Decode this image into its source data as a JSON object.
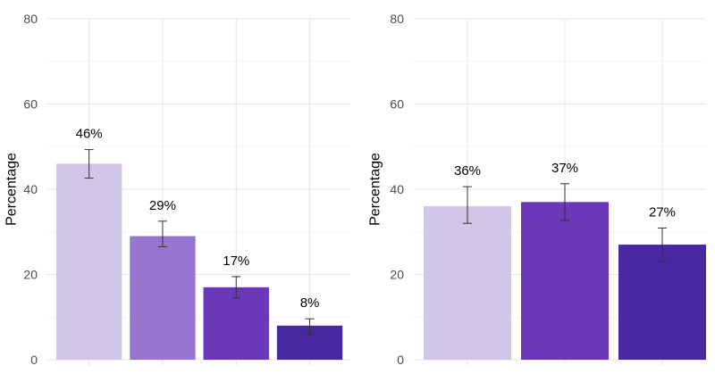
{
  "chart_data": [
    {
      "type": "bar",
      "categories": [
        "",
        "",
        "",
        ""
      ],
      "values": [
        46,
        29,
        17,
        8
      ],
      "error_low": [
        42.6,
        26.5,
        14.5,
        5.9
      ],
      "error_high": [
        49.3,
        32.5,
        19.5,
        9.6
      ],
      "data_labels": [
        "46%",
        "29%",
        "17%",
        "8%"
      ],
      "colors": [
        "#d0c6e8",
        "#9676d0",
        "#6a38b8",
        "#4728a0"
      ],
      "title": "",
      "xlabel": "",
      "ylabel": "Percentage",
      "ylim": [
        0,
        80
      ],
      "yticks": [
        0,
        20,
        40,
        60,
        80
      ],
      "ytick_labels": [
        "0",
        "20",
        "40",
        "60",
        "80"
      ],
      "grid": true
    },
    {
      "type": "bar",
      "categories": [
        "",
        "",
        ""
      ],
      "values": [
        36,
        37,
        27
      ],
      "error_low": [
        32,
        32.7,
        22.9
      ],
      "error_high": [
        40.6,
        41.3,
        30.9
      ],
      "data_labels": [
        "36%",
        "37%",
        "27%"
      ],
      "colors": [
        "#d0c6e8",
        "#6a38b8",
        "#4728a0"
      ],
      "title": "",
      "xlabel": "",
      "ylabel": "Percentage",
      "ylim": [
        0,
        80
      ],
      "yticks": [
        0,
        20,
        40,
        60,
        80
      ],
      "ytick_labels": [
        "0",
        "20",
        "40",
        "60",
        "80"
      ],
      "grid": true
    }
  ]
}
